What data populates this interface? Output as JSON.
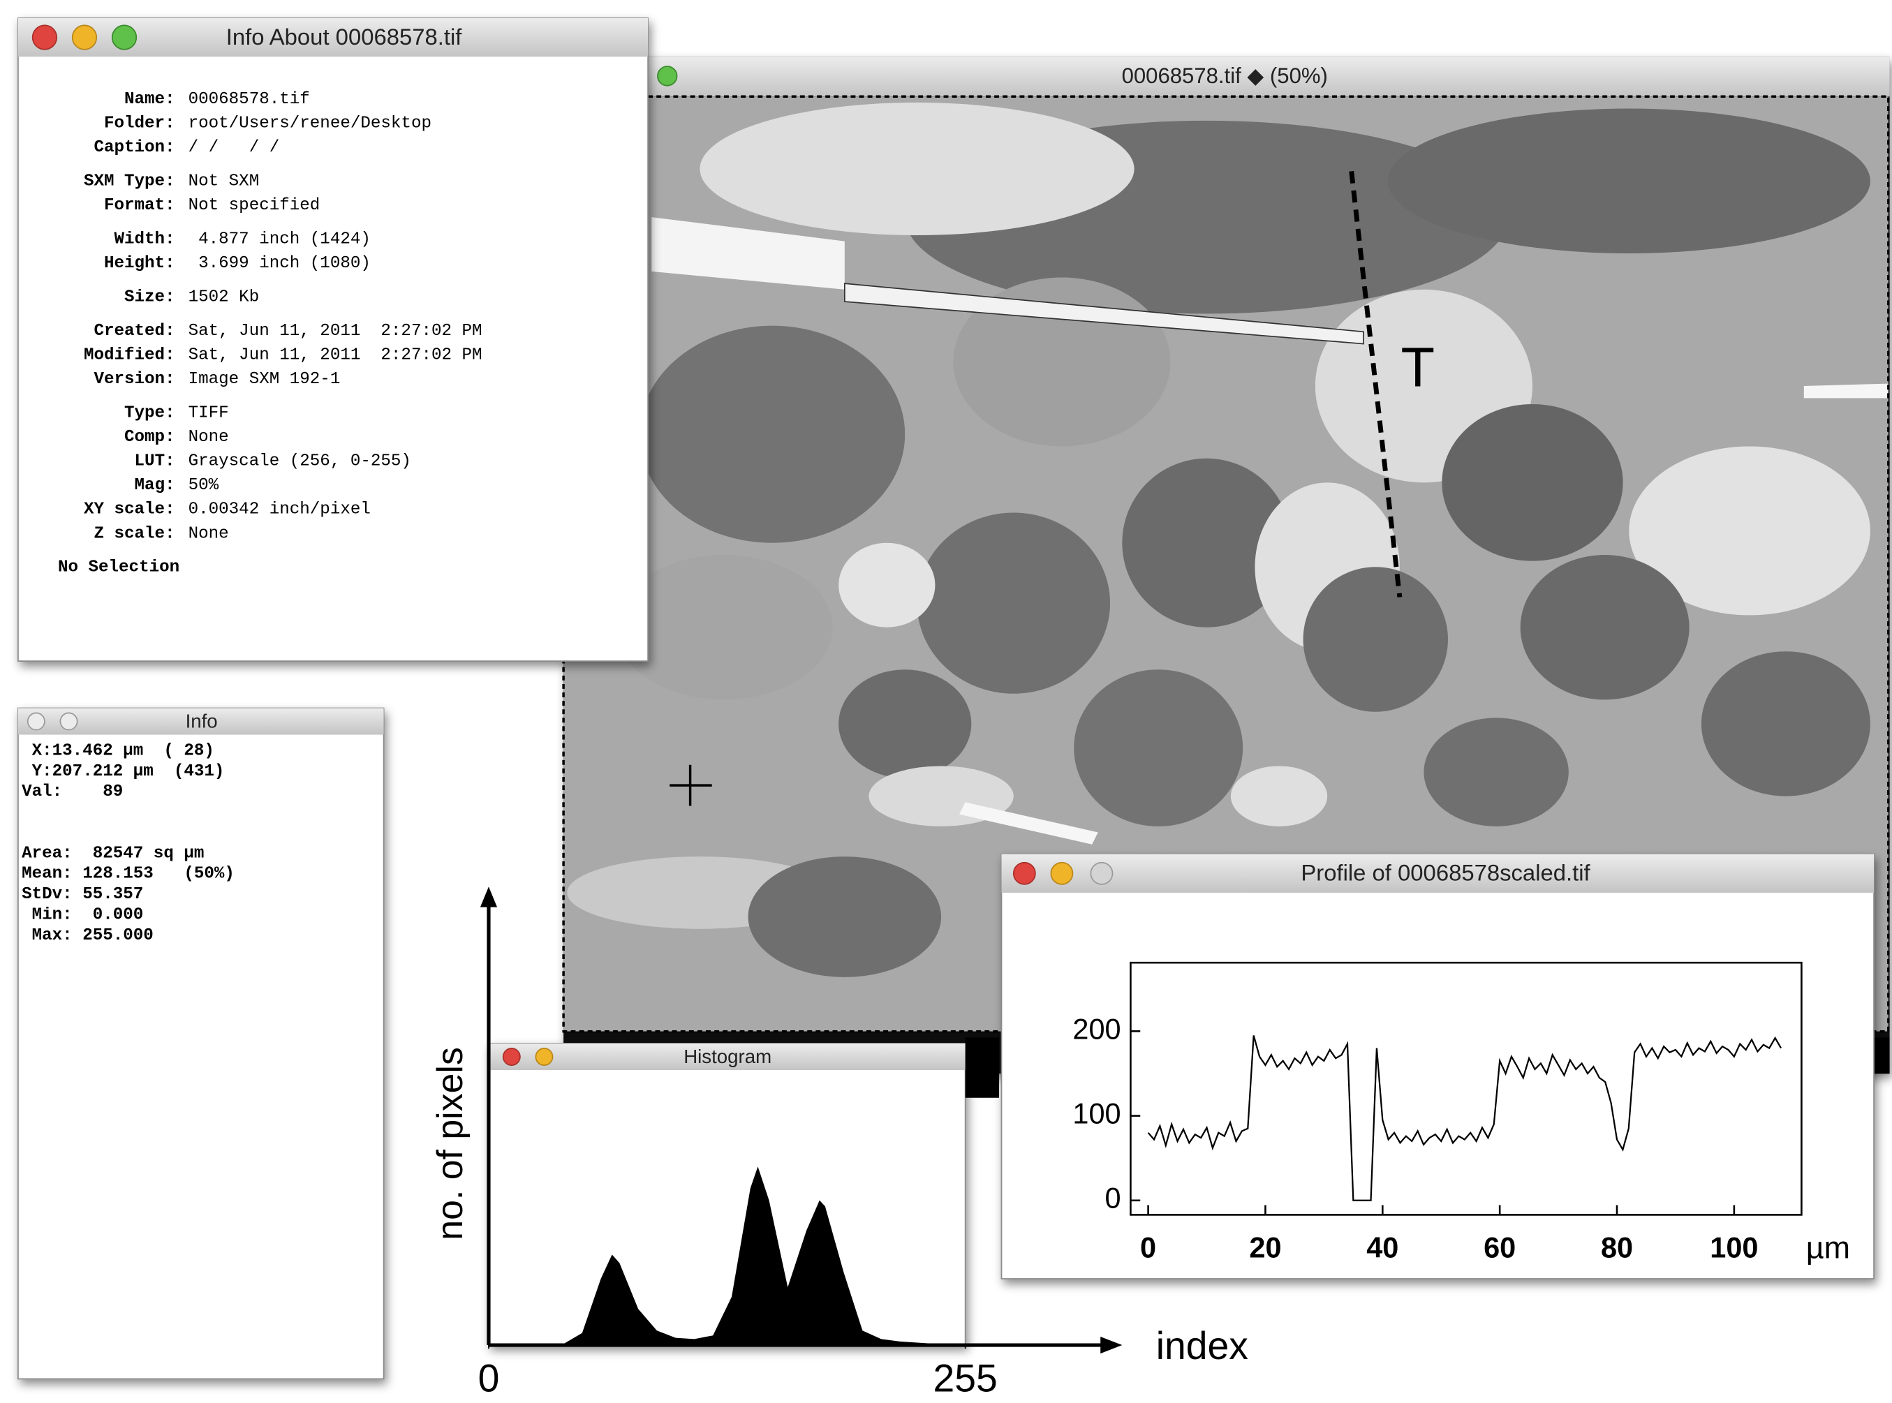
{
  "info_window": {
    "title": "Info About 00068578.tif",
    "groups": [
      [
        {
          "label": "Name:",
          "value": "00068578.tif"
        },
        {
          "label": "Folder:",
          "value": "root/Users/renee/Desktop"
        },
        {
          "label": "Caption:",
          "value": "/ /   / /"
        }
      ],
      [
        {
          "label": "SXM Type:",
          "value": "Not SXM"
        },
        {
          "label": "Format:",
          "value": "Not specified"
        }
      ],
      [
        {
          "label": "Width:",
          "value": " 4.877 inch (1424)"
        },
        {
          "label": "Height:",
          "value": " 3.699 inch (1080)"
        }
      ],
      [
        {
          "label": "Size:",
          "value": "1502 Kb"
        }
      ],
      [
        {
          "label": "Created:",
          "value": "Sat, Jun 11, 2011  2:27:02 PM"
        },
        {
          "label": "Modified:",
          "value": "Sat, Jun 11, 2011  2:27:02 PM"
        },
        {
          "label": "Version:",
          "value": "Image SXM 192-1"
        }
      ],
      [
        {
          "label": "Type:",
          "value": "TIFF"
        },
        {
          "label": "Comp:",
          "value": "None"
        },
        {
          "label": "LUT:",
          "value": "Grayscale (256, 0-255)"
        },
        {
          "label": "Mag:",
          "value": "50%"
        },
        {
          "label": "XY scale:",
          "value": "0.00342 inch/pixel"
        },
        {
          "label": "Z scale:",
          "value": "None"
        }
      ]
    ],
    "footer": "No Selection"
  },
  "image_window": {
    "title": "00068578.tif ◆ (50%)",
    "annotation": "T"
  },
  "cursor_info": {
    "title": "Info",
    "lines": [
      " X:13.462 µm  ( 28)",
      " Y:207.212 µm  (431)",
      "Val:    89",
      "",
      "",
      "Area:  82547 sq µm",
      "Mean: 128.153   (50%)",
      "StDv: 55.357",
      " Min:  0.000",
      " Max: 255.000"
    ]
  },
  "histogram": {
    "type": "area",
    "window_title": "Histogram",
    "x_label": "index",
    "y_label": "no. of pixels",
    "xlim": [
      0,
      255
    ],
    "xticks": [
      0,
      255
    ],
    "ylim": [
      0,
      160
    ],
    "color": "#000000",
    "x": [
      0,
      10,
      20,
      30,
      40,
      50,
      60,
      66,
      70,
      80,
      90,
      100,
      110,
      120,
      130,
      140,
      144,
      150,
      160,
      170,
      177,
      180,
      190,
      200,
      210,
      220,
      230,
      240,
      250,
      255
    ],
    "values": [
      0,
      0,
      0,
      0,
      1,
      10,
      55,
      75,
      68,
      30,
      12,
      6,
      5,
      8,
      40,
      130,
      148,
      120,
      48,
      95,
      120,
      115,
      60,
      12,
      5,
      3,
      2,
      1,
      0,
      0
    ]
  },
  "profile": {
    "type": "line",
    "window_title": "Profile of 00068578scaled.tif",
    "x_unit": "µm",
    "xlim": [
      -3,
      111.5
    ],
    "xticks": [
      0,
      20,
      40,
      60,
      80,
      100
    ],
    "ylim": [
      -17,
      281
    ],
    "yticks": [
      0,
      100,
      200
    ],
    "color": "#000000",
    "x": [
      0,
      1,
      2,
      3,
      4,
      5,
      6,
      7,
      8,
      9,
      10,
      11,
      12,
      13,
      14,
      15,
      16,
      17,
      18,
      19,
      20,
      21,
      22,
      23,
      24,
      25,
      26,
      27,
      28,
      29,
      30,
      31,
      32,
      33,
      34,
      35,
      36,
      37,
      38,
      39,
      40,
      41,
      42,
      43,
      44,
      45,
      46,
      47,
      48,
      49,
      50,
      51,
      52,
      53,
      54,
      55,
      56,
      57,
      58,
      59,
      60,
      61,
      62,
      63,
      64,
      65,
      66,
      67,
      68,
      69,
      70,
      71,
      72,
      73,
      74,
      75,
      76,
      77,
      78,
      79,
      80,
      81,
      82,
      83,
      84,
      85,
      86,
      87,
      88,
      89,
      90,
      91,
      92,
      93,
      94,
      95,
      96,
      97,
      98,
      99,
      100,
      101,
      102,
      103,
      104,
      105,
      106,
      107,
      108
    ],
    "values": [
      80,
      72,
      88,
      65,
      90,
      70,
      84,
      68,
      78,
      74,
      86,
      62,
      80,
      76,
      92,
      70,
      82,
      85,
      195,
      170,
      160,
      172,
      158,
      165,
      155,
      168,
      162,
      175,
      160,
      170,
      165,
      178,
      168,
      172,
      185,
      0,
      0,
      0,
      0,
      180,
      95,
      72,
      80,
      68,
      76,
      70,
      82,
      66,
      74,
      78,
      70,
      84,
      68,
      76,
      72,
      80,
      70,
      86,
      74,
      90,
      165,
      150,
      170,
      158,
      145,
      168,
      155,
      162,
      150,
      172,
      160,
      148,
      166,
      155,
      162,
      150,
      158,
      145,
      140,
      115,
      72,
      60,
      85,
      175,
      185,
      170,
      180,
      168,
      182,
      175,
      178,
      170,
      186,
      172,
      180,
      176,
      188,
      174,
      182,
      178,
      170,
      185,
      178,
      190,
      176,
      184,
      180,
      192,
      180
    ]
  }
}
